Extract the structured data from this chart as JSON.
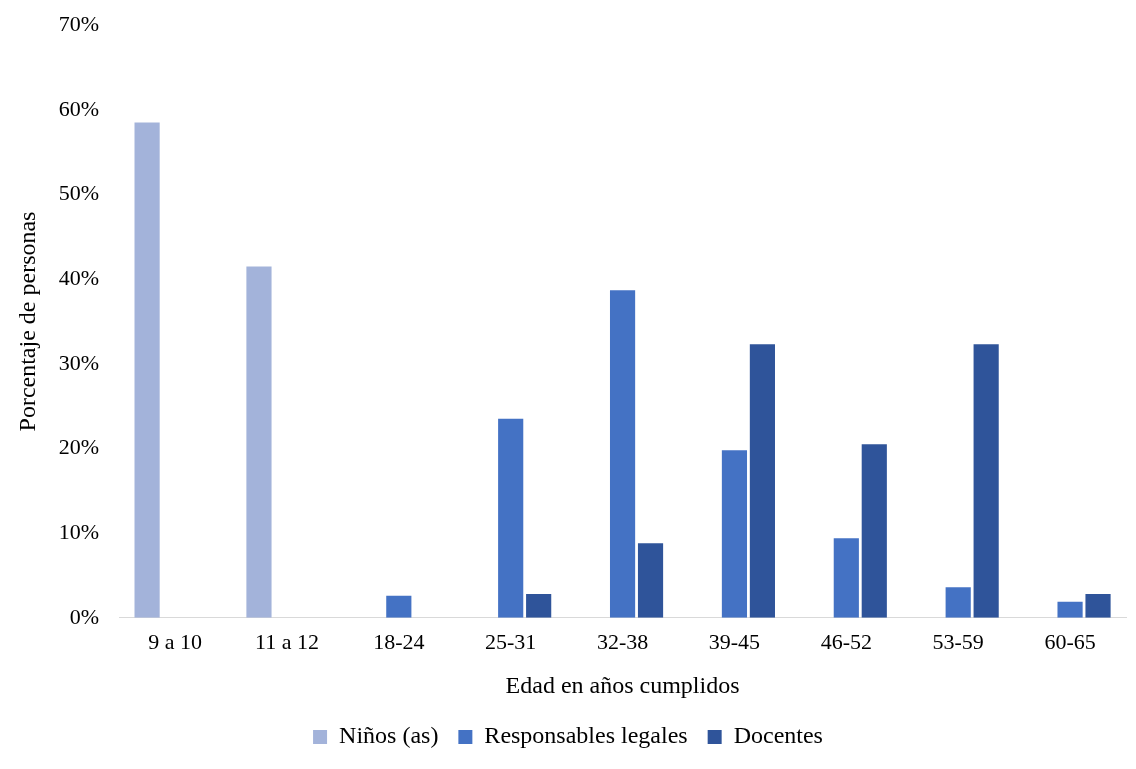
{
  "chart_data": {
    "type": "bar",
    "xlabel": "Edad en años cumplidos",
    "ylabel": "Porcentaje de personas",
    "categories": [
      "9 a 10",
      "11 a 12",
      "18-24",
      "25-31",
      "32-38",
      "39-45",
      "46-52",
      "53-59",
      "60-65"
    ],
    "series": [
      {
        "name": "Niños (as)",
        "color": "#a3b3da",
        "values": [
          58.5,
          41.5,
          0,
          0,
          0,
          0,
          0,
          0,
          0
        ]
      },
      {
        "name": "Responsables legales",
        "color": "#4472c4",
        "values": [
          0,
          0,
          2.6,
          23.5,
          38.7,
          19.8,
          9.4,
          3.6,
          1.9
        ]
      },
      {
        "name": "Docentes",
        "color": "#2f549a",
        "values": [
          0,
          0,
          0,
          2.8,
          8.8,
          32.3,
          20.5,
          32.3,
          2.8
        ]
      }
    ],
    "ylim": [
      0,
      70
    ],
    "yticks": [
      {
        "value": 0,
        "label": "0%"
      },
      {
        "value": 10,
        "label": "10%"
      },
      {
        "value": 20,
        "label": "20%"
      },
      {
        "value": 30,
        "label": "30%"
      },
      {
        "value": 40,
        "label": "40%"
      },
      {
        "value": 50,
        "label": "50%"
      },
      {
        "value": 60,
        "label": "60%"
      },
      {
        "value": 70,
        "label": "70%"
      }
    ],
    "grid": false,
    "legend": "bottom"
  }
}
